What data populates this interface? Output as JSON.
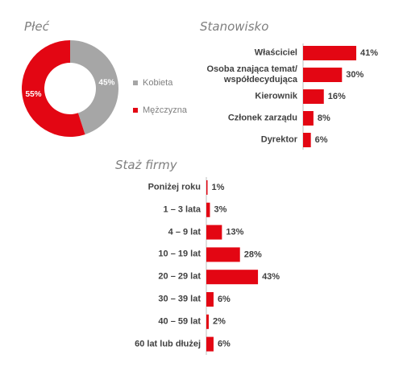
{
  "chart_data": [
    {
      "type": "donut",
      "title": "Płeć",
      "categories": [
        "Kobieta",
        "Mężczyzna"
      ],
      "values": [
        45,
        55
      ],
      "value_labels": [
        "45%",
        "55%"
      ],
      "colors": [
        "#a6a6a6",
        "#e30613"
      ]
    },
    {
      "type": "bar",
      "orientation": "horizontal",
      "title": "Stanowisko",
      "categories": [
        "Właściciel",
        "Osoba znająca temat/\nwspółdecydująca",
        "Kierownik",
        "Członek zarządu",
        "Dyrektor"
      ],
      "values": [
        41,
        30,
        16,
        8,
        6
      ],
      "value_labels": [
        "41%",
        "30%",
        "16%",
        "8%",
        "6%"
      ],
      "color": "#e30613"
    },
    {
      "type": "bar",
      "orientation": "horizontal",
      "title": "Staż firmy",
      "categories": [
        "Poniżej roku",
        "1 – 3 lata",
        "4 – 9 lat",
        "10 – 19 lat",
        "20 – 29 lat",
        "30 – 39 lat",
        "40 – 59 lat",
        "60 lat lub dłużej"
      ],
      "values": [
        1,
        3,
        13,
        28,
        43,
        6,
        2,
        6
      ],
      "value_labels": [
        "1%",
        "3%",
        "13%",
        "28%",
        "43%",
        "6%",
        "2%",
        "6%"
      ],
      "color": "#e30613"
    }
  ]
}
